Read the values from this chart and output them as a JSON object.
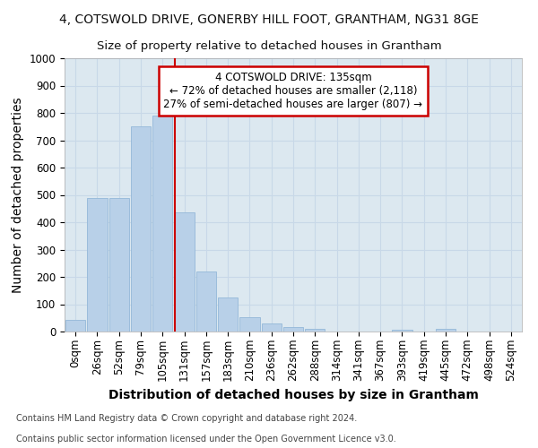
{
  "title_line1": "4, COTSWOLD DRIVE, GONERBY HILL FOOT, GRANTHAM, NG31 8GE",
  "title_line2": "Size of property relative to detached houses in Grantham",
  "xlabel": "Distribution of detached houses by size in Grantham",
  "ylabel": "Number of detached properties",
  "bar_labels": [
    "0sqm",
    "26sqm",
    "52sqm",
    "79sqm",
    "105sqm",
    "131sqm",
    "157sqm",
    "183sqm",
    "210sqm",
    "236sqm",
    "262sqm",
    "288sqm",
    "314sqm",
    "341sqm",
    "367sqm",
    "393sqm",
    "419sqm",
    "445sqm",
    "472sqm",
    "498sqm",
    "524sqm"
  ],
  "bar_values": [
    42,
    490,
    490,
    750,
    790,
    435,
    220,
    125,
    52,
    28,
    15,
    10,
    0,
    0,
    0,
    5,
    0,
    10,
    0,
    0,
    0
  ],
  "bar_color": "#b8d0e8",
  "bar_edgecolor": "#94b8d8",
  "red_line_index": 5,
  "annotation_text": "4 COTSWOLD DRIVE: 135sqm\n← 72% of detached houses are smaller (2,118)\n27% of semi-detached houses are larger (807) →",
  "annotation_box_color": "#ffffff",
  "annotation_box_edgecolor": "#cc0000",
  "red_line_color": "#cc0000",
  "ylim": [
    0,
    1000
  ],
  "yticks": [
    0,
    100,
    200,
    300,
    400,
    500,
    600,
    700,
    800,
    900,
    1000
  ],
  "grid_color": "#c8d8e8",
  "bg_color": "#dce8f0",
  "footnote1": "Contains HM Land Registry data © Crown copyright and database right 2024.",
  "footnote2": "Contains public sector information licensed under the Open Government Licence v3.0.",
  "title_fontsize": 10,
  "subtitle_fontsize": 9.5,
  "axis_label_fontsize": 10,
  "tick_fontsize": 8.5,
  "footnote_fontsize": 7
}
